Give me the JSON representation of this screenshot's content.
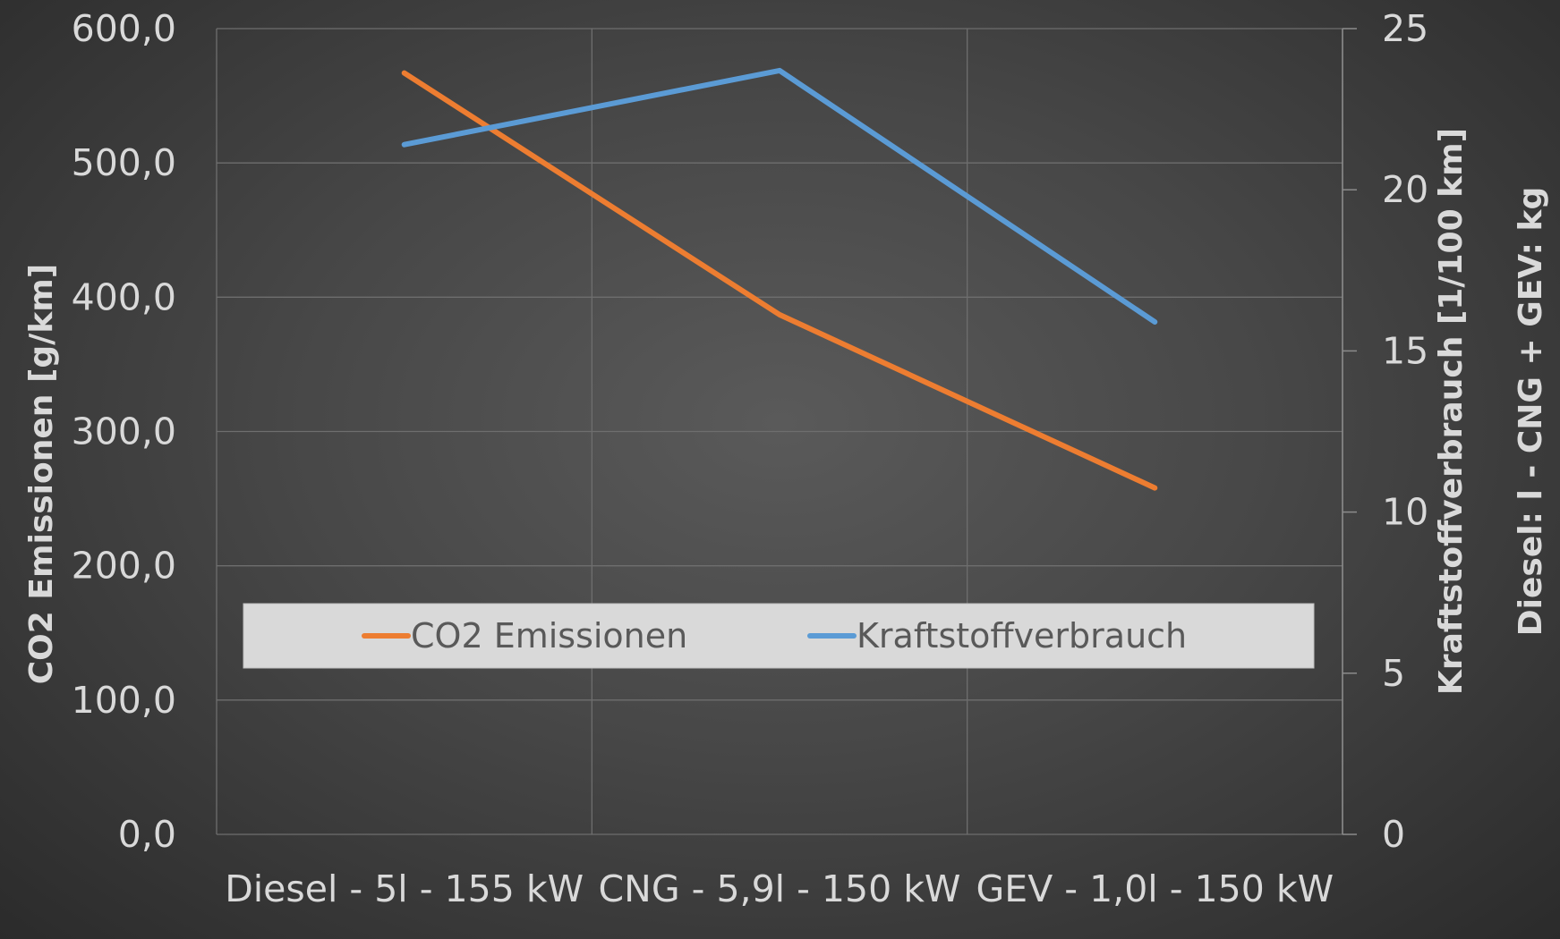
{
  "chart_data": {
    "type": "line",
    "categories": [
      "Diesel - 5l - 155 kW",
      "CNG - 5,9l - 150 kW",
      "GEV - 1,0l - 150 kW"
    ],
    "series": [
      {
        "name": "CO2 Emissionen",
        "axis": "left",
        "color": "#ED7D31",
        "values": [
          567,
          387,
          258
        ]
      },
      {
        "name": "Kraftstoffverbrauch",
        "axis": "right",
        "color": "#5B9BD5",
        "values": [
          21.4,
          23.7,
          15.9
        ]
      }
    ],
    "ylabel": "CO2 Emissionen [g/km]",
    "y2label": [
      "Kraftstoffverbrauch [1/100 km]",
      "Diesel: l - CNG + GEV: kg"
    ],
    "ylim": [
      0,
      600
    ],
    "y2lim": [
      0,
      25
    ],
    "yticks": [
      "0,0",
      "100,0",
      "200,0",
      "300,0",
      "400,0",
      "500,0",
      "600,0"
    ],
    "y2ticks": [
      "0",
      "5",
      "10",
      "15",
      "20",
      "25"
    ],
    "grid": true,
    "legend": "bottom-center-inside"
  }
}
